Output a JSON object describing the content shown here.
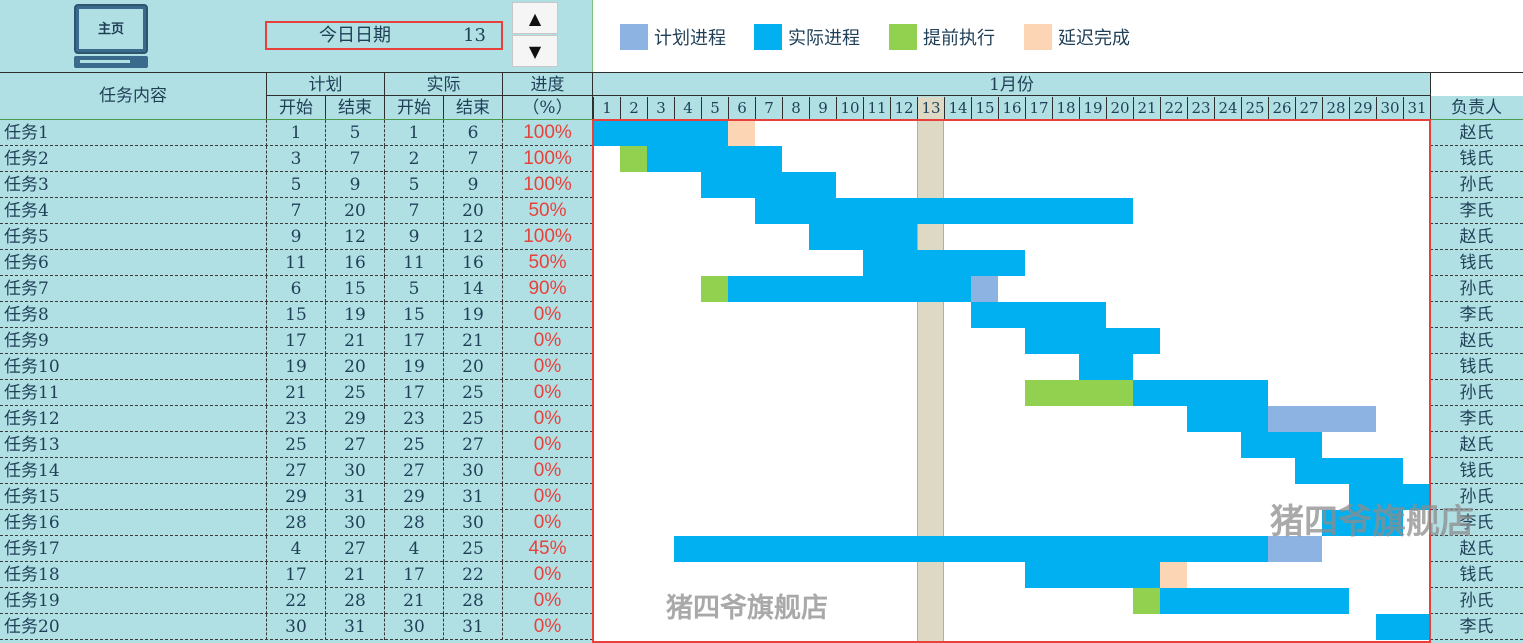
{
  "toolbar": {
    "home_label": "主页",
    "today_label": "今日日期",
    "today_value": "13",
    "up_arrow": "▲",
    "down_arrow": "▼"
  },
  "legend": [
    {
      "label": "计划进程",
      "color": "#8db3e2"
    },
    {
      "label": "实际进程",
      "color": "#00b0f0"
    },
    {
      "label": "提前执行",
      "color": "#92d050"
    },
    {
      "label": "延迟完成",
      "color": "#fcd5b4"
    }
  ],
  "headers": {
    "task": "任务内容",
    "plan": "计划",
    "actual": "实际",
    "progress": "进度",
    "progress_unit": "（%）",
    "start": "开始",
    "end": "结束",
    "month": "1月份",
    "owner": "负责人",
    "days": [
      "1",
      "2",
      "3",
      "4",
      "5",
      "6",
      "7",
      "8",
      "9",
      "10",
      "11",
      "12",
      "13",
      "14",
      "15",
      "16",
      "17",
      "18",
      "19",
      "20",
      "21",
      "22",
      "23",
      "24",
      "25",
      "26",
      "27",
      "28",
      "29",
      "30",
      "31"
    ]
  },
  "today": 13,
  "tasks": [
    {
      "name": "任务1",
      "plan_start": "1",
      "plan_end": "5",
      "actual_start": "1",
      "actual_end": "6",
      "progress": "100%",
      "owner": "赵氏"
    },
    {
      "name": "任务2",
      "plan_start": "3",
      "plan_end": "7",
      "actual_start": "2",
      "actual_end": "7",
      "progress": "100%",
      "owner": "钱氏"
    },
    {
      "name": "任务3",
      "plan_start": "5",
      "plan_end": "9",
      "actual_start": "5",
      "actual_end": "9",
      "progress": "100%",
      "owner": "孙氏"
    },
    {
      "name": "任务4",
      "plan_start": "7",
      "plan_end": "20",
      "actual_start": "7",
      "actual_end": "20",
      "progress": "50%",
      "owner": "李氏"
    },
    {
      "name": "任务5",
      "plan_start": "9",
      "plan_end": "12",
      "actual_start": "9",
      "actual_end": "12",
      "progress": "100%",
      "owner": "赵氏"
    },
    {
      "name": "任务6",
      "plan_start": "11",
      "plan_end": "16",
      "actual_start": "11",
      "actual_end": "16",
      "progress": "50%",
      "owner": "钱氏"
    },
    {
      "name": "任务7",
      "plan_start": "6",
      "plan_end": "15",
      "actual_start": "5",
      "actual_end": "14",
      "progress": "90%",
      "owner": "孙氏"
    },
    {
      "name": "任务8",
      "plan_start": "15",
      "plan_end": "19",
      "actual_start": "15",
      "actual_end": "19",
      "progress": "0%",
      "owner": "李氏"
    },
    {
      "name": "任务9",
      "plan_start": "17",
      "plan_end": "21",
      "actual_start": "17",
      "actual_end": "21",
      "progress": "0%",
      "owner": "赵氏"
    },
    {
      "name": "任务10",
      "plan_start": "19",
      "plan_end": "20",
      "actual_start": "19",
      "actual_end": "20",
      "progress": "0%",
      "owner": "钱氏"
    },
    {
      "name": "任务11",
      "plan_start": "21",
      "plan_end": "25",
      "actual_start": "17",
      "actual_end": "25",
      "progress": "0%",
      "owner": "孙氏"
    },
    {
      "name": "任务12",
      "plan_start": "23",
      "plan_end": "29",
      "actual_start": "23",
      "actual_end": "25",
      "progress": "0%",
      "owner": "李氏"
    },
    {
      "name": "任务13",
      "plan_start": "25",
      "plan_end": "27",
      "actual_start": "25",
      "actual_end": "27",
      "progress": "0%",
      "owner": "赵氏"
    },
    {
      "name": "任务14",
      "plan_start": "27",
      "plan_end": "30",
      "actual_start": "27",
      "actual_end": "30",
      "progress": "0%",
      "owner": "钱氏"
    },
    {
      "name": "任务15",
      "plan_start": "29",
      "plan_end": "31",
      "actual_start": "29",
      "actual_end": "31",
      "progress": "0%",
      "owner": "孙氏"
    },
    {
      "name": "任务16",
      "plan_start": "28",
      "plan_end": "30",
      "actual_start": "28",
      "actual_end": "30",
      "progress": "0%",
      "owner": "李氏"
    },
    {
      "name": "任务17",
      "plan_start": "4",
      "plan_end": "27",
      "actual_start": "4",
      "actual_end": "25",
      "progress": "45%",
      "owner": "赵氏"
    },
    {
      "name": "任务18",
      "plan_start": "17",
      "plan_end": "21",
      "actual_start": "17",
      "actual_end": "22",
      "progress": "0%",
      "owner": "钱氏"
    },
    {
      "name": "任务19",
      "plan_start": "22",
      "plan_end": "28",
      "actual_start": "21",
      "actual_end": "28",
      "progress": "0%",
      "owner": "孙氏"
    },
    {
      "name": "任务20",
      "plan_start": "30",
      "plan_end": "31",
      "actual_start": "30",
      "actual_end": "31",
      "progress": "0%",
      "owner": "李氏"
    }
  ],
  "colors": {
    "header_bg": "#b1e0e4",
    "plan": "#8db3e2",
    "actual": "#00b0f0",
    "early": "#92d050",
    "late": "#fcd5b4",
    "today_col": "#ddd9c4",
    "progress_text": "#e8413b",
    "frame": "#e8413b"
  },
  "watermarks": [
    "猪四爷旗舰店",
    "猪四爷旗舰店"
  ]
}
